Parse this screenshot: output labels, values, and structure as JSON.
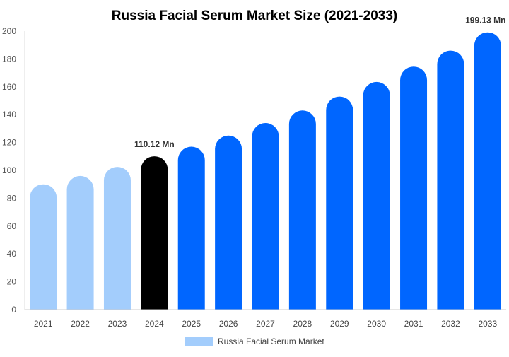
{
  "chart_data": {
    "type": "bar",
    "title": "Russia Facial Serum Market Size (2021-2033)",
    "xlabel": "",
    "ylabel": "",
    "ylim": [
      0,
      200
    ],
    "yticks": [
      0,
      20,
      40,
      60,
      80,
      100,
      120,
      140,
      160,
      180,
      200
    ],
    "categories": [
      "2021",
      "2022",
      "2023",
      "2024",
      "2025",
      "2026",
      "2027",
      "2028",
      "2029",
      "2030",
      "2031",
      "2032",
      "2033"
    ],
    "series": [
      {
        "name": "Russia Facial Serum Market",
        "values": [
          90,
          96,
          102.5,
          110.12,
          117,
          125,
          134,
          143,
          153,
          163.5,
          174.5,
          186,
          199.13
        ]
      }
    ],
    "bar_colors": [
      "#a3cdfc",
      "#a3cdfc",
      "#a3cdfc",
      "#000000",
      "#0066ff",
      "#0066ff",
      "#0066ff",
      "#0066ff",
      "#0066ff",
      "#0066ff",
      "#0066ff",
      "#0066ff",
      "#0066ff"
    ],
    "data_labels": [
      {
        "category": "2024",
        "text": "110.12 Mn"
      },
      {
        "category": "2033",
        "text": "199.13 Mn"
      }
    ],
    "legend": {
      "position": "bottom",
      "color": "#a3cdfc"
    },
    "grid": false
  }
}
